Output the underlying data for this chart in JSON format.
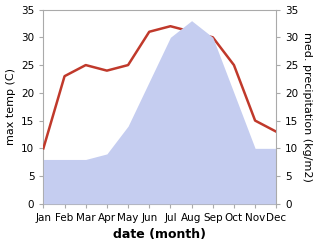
{
  "months": [
    "Jan",
    "Feb",
    "Mar",
    "Apr",
    "May",
    "Jun",
    "Jul",
    "Aug",
    "Sep",
    "Oct",
    "Nov",
    "Dec"
  ],
  "temperature": [
    10,
    23,
    25,
    24,
    25,
    31,
    32,
    31,
    30,
    25,
    15,
    13
  ],
  "precipitation": [
    8,
    8,
    8,
    9,
    14,
    22,
    30,
    33,
    30,
    20,
    10,
    10
  ],
  "temp_color": "#c0392b",
  "precip_color_fill": "#c5cdf0",
  "ylim": [
    0,
    35
  ],
  "yticks": [
    0,
    5,
    10,
    15,
    20,
    25,
    30,
    35
  ],
  "ylabel_left": "max temp (C)",
  "ylabel_right": "med. precipitation (kg/m2)",
  "xlabel": "date (month)",
  "xlabel_fontsize": 9,
  "ylabel_fontsize": 8,
  "tick_fontsize": 7.5,
  "line_width": 1.8,
  "spine_color": "#aaaaaa",
  "fig_bg": "#ffffff",
  "plot_bg": "#ffffff"
}
